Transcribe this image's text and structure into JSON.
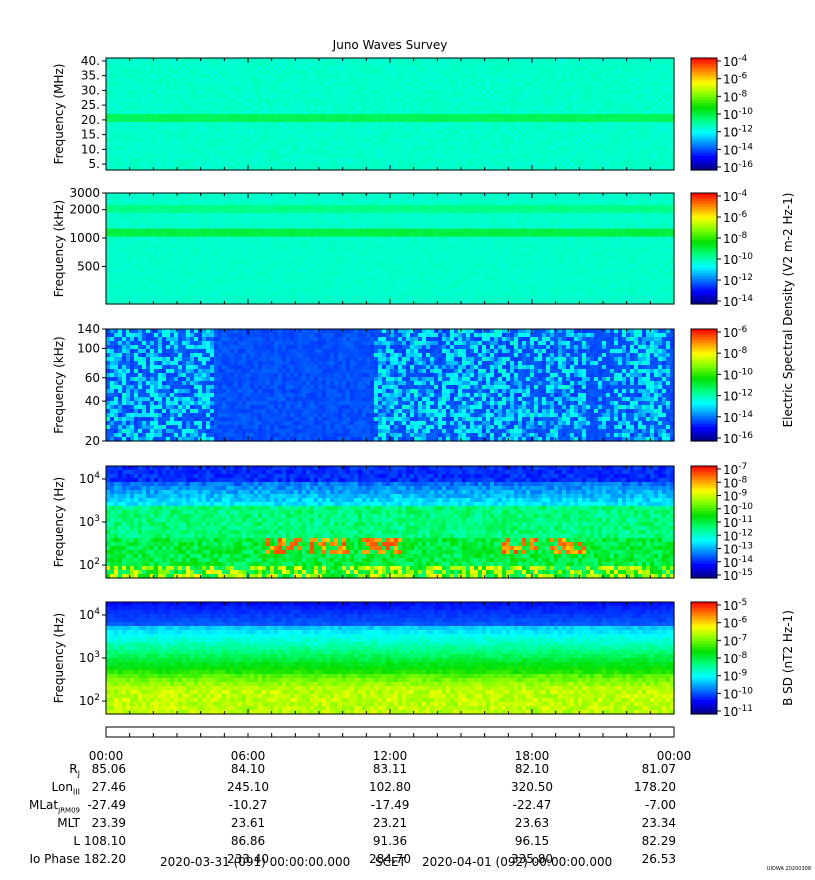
{
  "title": "Juno Waves Survey",
  "colormap": [
    "#000080",
    "#0000ff",
    "#0080ff",
    "#00ffff",
    "#00ff80",
    "#00e000",
    "#80ff00",
    "#ffff00",
    "#ff8000",
    "#ff0000"
  ],
  "chart_data": [
    {
      "type": "heatmap",
      "ylabel": "Frequency (MHz)",
      "yticks": [
        "40.",
        "35.",
        "30.",
        "25.",
        "20.",
        "15.",
        "10.",
        "5."
      ],
      "ylim": [
        3,
        41
      ],
      "colorbar_ticks": [
        "10-4",
        "10-6",
        "10-8",
        "10-10",
        "10-12",
        "10-14",
        "10-16"
      ],
      "colorbar_label": "",
      "band_features": [
        {
          "frequency": 21,
          "level": 0.48
        }
      ],
      "background_level": 0.38
    },
    {
      "type": "heatmap",
      "ylabel": "Frequency (kHz)",
      "yticks": [
        "3000",
        "2000",
        "1000",
        "500"
      ],
      "ylim": [
        200,
        3000
      ],
      "colorbar_ticks": [
        "10-4",
        "10-6",
        "10-8",
        "10-10",
        "10-12",
        "10-14"
      ],
      "colorbar_label": "Electric Spectral Density (V2 m-2 Hz-1)",
      "band_features": [
        {
          "frequency": 1150,
          "level": 0.5
        },
        {
          "frequency": 2100,
          "level": 0.44
        }
      ],
      "background_level": 0.38
    },
    {
      "type": "heatmap",
      "ylabel": "Frequency (kHz)",
      "yticks": [
        "140",
        "100",
        "60",
        "40",
        "20"
      ],
      "ylim": [
        20,
        140
      ],
      "colorbar_ticks": [
        "10-6",
        "10-8",
        "10-10",
        "10-12",
        "10-14",
        "10-16"
      ],
      "colorbar_label": "",
      "activity_windows_hours": [
        [
          0,
          4.5
        ],
        [
          11,
          20.5
        ],
        [
          17,
          25
        ]
      ],
      "background_level": 0.18
    },
    {
      "type": "heatmap",
      "ylabel": "Frequency (Hz)",
      "yticks": [
        "10^4",
        "10^3",
        "10^2"
      ],
      "ylim": [
        50,
        20000
      ],
      "colorbar_ticks": [
        "10-7",
        "10-8",
        "10-9",
        "10-10",
        "10-11",
        "10-12",
        "10-13",
        "10-14",
        "10-15"
      ],
      "colorbar_label": "",
      "hotspots_hours": [
        7.5,
        9.5,
        11.7,
        17.5,
        19.5
      ]
    },
    {
      "type": "heatmap",
      "ylabel": "Frequency (Hz)",
      "yticks": [
        "10^4",
        "10^3",
        "10^2"
      ],
      "ylim": [
        50,
        20000
      ],
      "colorbar_ticks": [
        "10-5",
        "10-6",
        "10-7",
        "10-8",
        "10-9",
        "10-10",
        "10-11"
      ],
      "colorbar_label": "B SD (nT2 Hz-1)"
    }
  ],
  "xaxis": {
    "ticks": [
      "00:00",
      "06:00",
      "12:00",
      "18:00",
      "00:00"
    ]
  },
  "ephemeris": {
    "labels": [
      "Rj",
      "LonIII",
      "MLatJRM09",
      "MLT",
      "L",
      "Io Phase"
    ],
    "columns": [
      [
        "85.06",
        "27.46",
        "-27.49",
        "23.39",
        "108.10",
        "182.20"
      ],
      [
        "84.10",
        "245.10",
        "-10.27",
        "23.61",
        "86.86",
        "233.40"
      ],
      [
        "83.11",
        "102.80",
        "-17.49",
        "23.21",
        "91.36",
        "284.70"
      ],
      [
        "82.10",
        "320.50",
        "-22.47",
        "23.63",
        "96.15",
        "335.80"
      ],
      [
        "81.07",
        "178.20",
        "-7.00",
        "23.34",
        "82.29",
        "26.53"
      ]
    ]
  },
  "footer": {
    "start": "2020-03-31 (091) 00:00:00.000",
    "scet": "SCET",
    "end": "2020-04-01 (092) 00:00:00.000"
  },
  "credit": "UIOWA 20200308"
}
